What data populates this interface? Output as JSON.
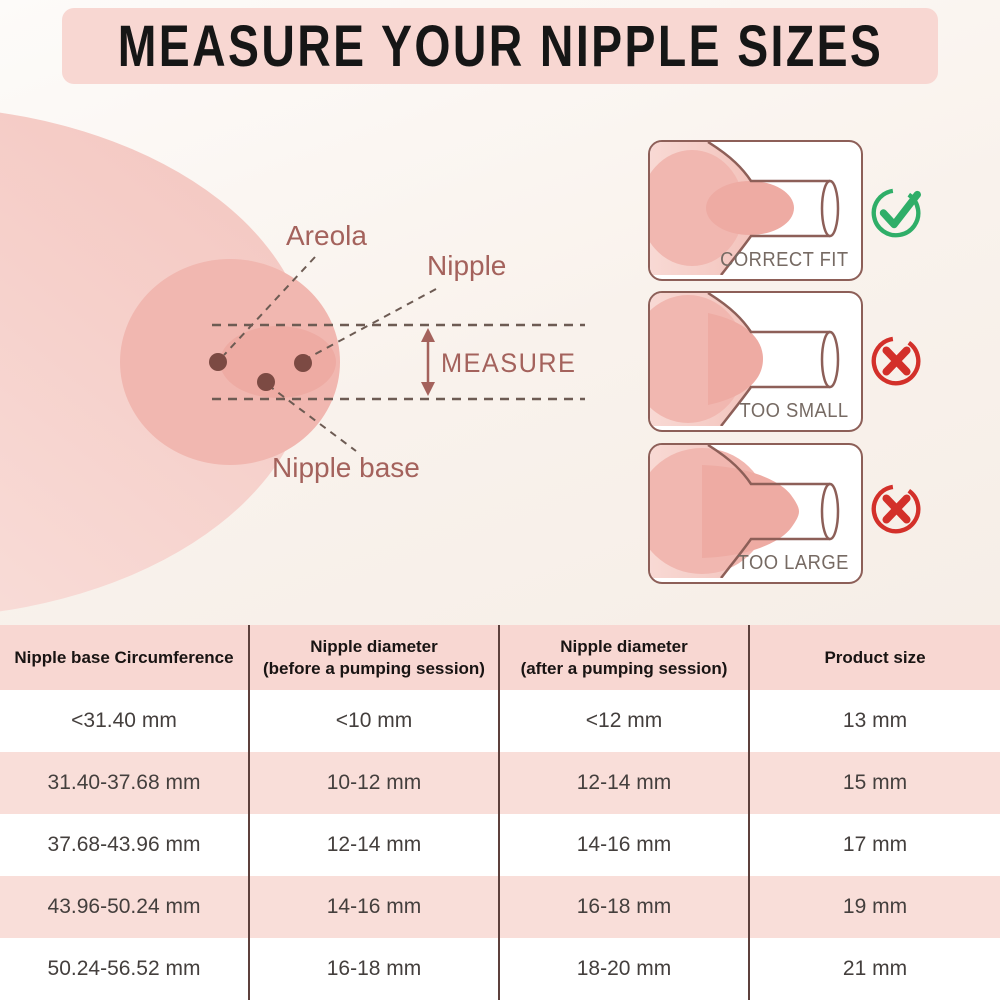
{
  "title": "MEASURE YOUR NIPPLE SIZES",
  "diagram": {
    "labels": {
      "areola": "Areola",
      "nipple": "Nipple",
      "nipple_base": "Nipple base",
      "measure": "MEASURE"
    }
  },
  "fit_cards": [
    {
      "label": "CORRECT FIT",
      "icon": "check",
      "status": "correct"
    },
    {
      "label": "TOO SMALL",
      "icon": "cross",
      "status": "incorrect"
    },
    {
      "label": "TOO LARGE",
      "icon": "cross",
      "status": "incorrect"
    }
  ],
  "table": {
    "headers": [
      {
        "line1": "Nipple base Circumference",
        "line2": ""
      },
      {
        "line1": "Nipple diameter",
        "line2": "(before a pumping session)"
      },
      {
        "line1": "Nipple diameter",
        "line2": "(after a pumping session)"
      },
      {
        "line1": "Product size",
        "line2": ""
      }
    ],
    "rows": [
      [
        "<31.40 mm",
        "<10 mm",
        "<12 mm",
        "13 mm"
      ],
      [
        "31.40-37.68 mm",
        "10-12 mm",
        "12-14 mm",
        "15 mm"
      ],
      [
        "37.68-43.96 mm",
        "12-14 mm",
        "14-16 mm",
        "17 mm"
      ],
      [
        "43.96-50.24 mm",
        "14-16 mm",
        "16-18 mm",
        "19 mm"
      ],
      [
        "50.24-56.52 mm",
        "16-18 mm",
        "18-20 mm",
        "21 mm"
      ]
    ]
  },
  "colors": {
    "banner_pink": "#f8d7d2",
    "row_pink": "#f9ded9",
    "background_cream": "#f9f2ec",
    "areola": "#f1b7b0",
    "nipple": "#eeaba3",
    "annotation_brown": "#a4625c",
    "dashed_line": "#6d5b53",
    "dot_brown": "#7c4a43",
    "card_border": "#8d5f58",
    "card_label": "#766a63",
    "check_green": "#2fae68",
    "cross_red": "#d3302a",
    "table_divider": "#5d403c",
    "table_text": "#443f3d"
  }
}
